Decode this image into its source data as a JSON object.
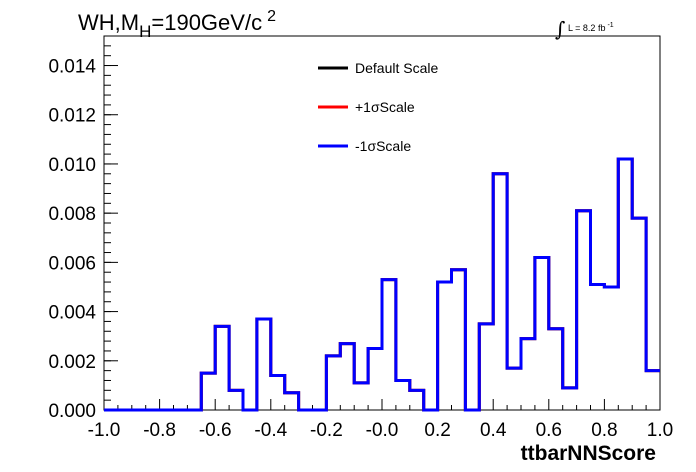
{
  "chart_data": {
    "type": "line",
    "title_main": "WH,M",
    "title_sub": "H",
    "title_rest": "=190GeV/c",
    "title_sup": "2",
    "lumi_prefix": "L = 8.2 fb",
    "lumi_sup": "-1",
    "xlabel": "ttbarNNScore",
    "ylabel": "",
    "xlim": [
      -1.0,
      1.0
    ],
    "ylim": [
      0.0,
      0.0152
    ],
    "x_ticks": [
      "-1.0",
      "-0.8",
      "-0.6",
      "-0.4",
      "-0.2",
      "-0.0",
      "0.2",
      "0.4",
      "0.6",
      "0.8",
      "1.0"
    ],
    "y_ticks": [
      "0.000",
      "0.002",
      "0.004",
      "0.006",
      "0.008",
      "0.010",
      "0.012",
      "0.014"
    ],
    "legend": [
      {
        "label": "Default Scale",
        "color": "#000000"
      },
      {
        "label": "+1σScale",
        "color": "#ff0000"
      },
      {
        "label": "-1σScale",
        "color": "#0000ff"
      }
    ],
    "bin_edges": [
      -1.0,
      -0.95,
      -0.9,
      -0.85,
      -0.8,
      -0.75,
      -0.7,
      -0.65,
      -0.6,
      -0.55,
      -0.5,
      -0.45,
      -0.4,
      -0.35,
      -0.3,
      -0.25,
      -0.2,
      -0.15,
      -0.1,
      -0.05,
      0.0,
      0.05,
      0.1,
      0.15,
      0.2,
      0.25,
      0.3,
      0.35,
      0.4,
      0.45,
      0.5,
      0.55,
      0.6,
      0.65,
      0.7,
      0.75,
      0.8,
      0.85,
      0.9,
      0.95,
      1.0
    ],
    "values": [
      0.0,
      0.0,
      0.0,
      0.0,
      0.0,
      0.0,
      0.0,
      0.0015,
      0.0034,
      0.0008,
      0.0,
      0.0037,
      0.0014,
      0.0007,
      0.0,
      0.0,
      0.0022,
      0.0027,
      0.0011,
      0.0025,
      0.0053,
      0.0012,
      0.0008,
      0.0,
      0.0052,
      0.0057,
      0.0,
      0.0035,
      0.0096,
      0.0017,
      0.0029,
      0.0062,
      0.0033,
      0.0009,
      0.0081,
      0.0051,
      0.005,
      0.0102,
      0.0078,
      0.0016
    ],
    "series_colors": {
      "default": "#000000",
      "plus": "#ff0000",
      "minus": "#0000ff"
    }
  }
}
